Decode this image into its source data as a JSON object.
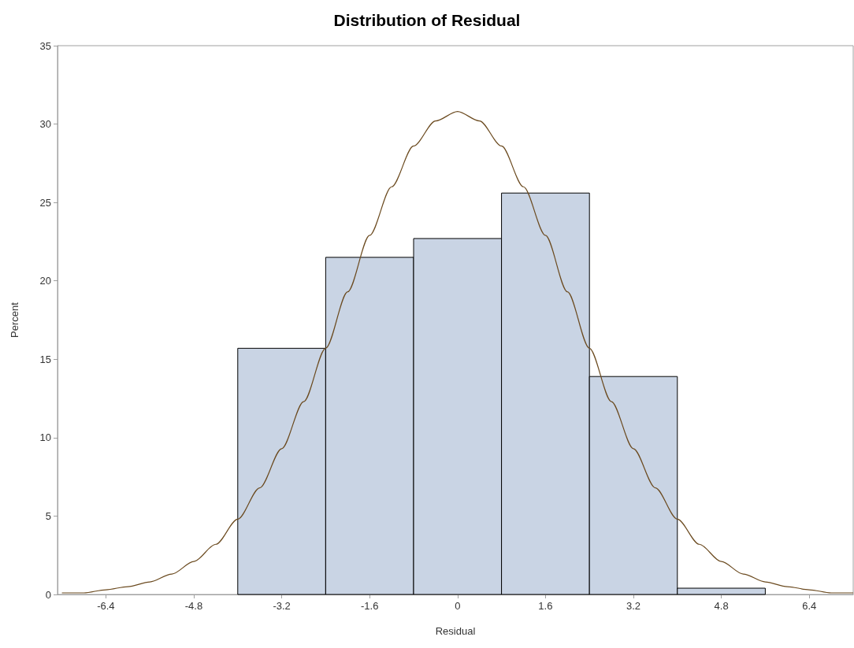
{
  "chart_data": {
    "type": "histogram",
    "title": "Distribution of Residual",
    "xlabel": "Residual",
    "ylabel": "Percent",
    "xlim": [
      -7.28,
      7.2
    ],
    "xticks": [
      -6.4,
      -4.8,
      -3.2,
      -1.6,
      0,
      1.6,
      3.2,
      4.8,
      6.4
    ],
    "ylim": [
      0,
      35
    ],
    "yticks": [
      0,
      5,
      10,
      15,
      20,
      25,
      30,
      35
    ],
    "grid": false,
    "series": [
      {
        "color": "#c9d4e4",
        "bins": [
          -4.0,
          -2.4,
          -0.8,
          0.8,
          2.4,
          4.0,
          5.6
        ],
        "values": [
          15.7,
          21.5,
          22.7,
          25.6,
          13.9,
          0.4
        ]
      },
      {
        "type": "line",
        "color": "#6b4a1f",
        "marker": "none",
        "x": [
          -7.2,
          -6.8,
          -6.4,
          -6.0,
          -5.6,
          -5.2,
          -4.8,
          -4.4,
          -4.0,
          -3.6,
          -3.2,
          -2.8,
          -2.4,
          -2.0,
          -1.6,
          -1.2,
          -0.8,
          -0.4,
          0,
          0.4,
          0.8,
          1.2,
          1.6,
          2.0,
          2.4,
          2.8,
          3.2,
          3.6,
          4.0,
          4.4,
          4.8,
          5.2,
          5.6,
          6.0,
          6.4,
          6.8,
          7.2
        ],
        "values": [
          0.1,
          0.1,
          0.3,
          0.5,
          0.8,
          1.3,
          2.1,
          3.2,
          4.8,
          6.8,
          9.3,
          12.3,
          15.7,
          19.3,
          22.9,
          26.0,
          28.6,
          30.2,
          30.8,
          30.2,
          28.6,
          26.0,
          22.9,
          19.3,
          15.7,
          12.3,
          9.3,
          6.8,
          4.8,
          3.2,
          2.1,
          1.3,
          0.8,
          0.5,
          0.3,
          0.1,
          0.1
        ]
      }
    ]
  }
}
